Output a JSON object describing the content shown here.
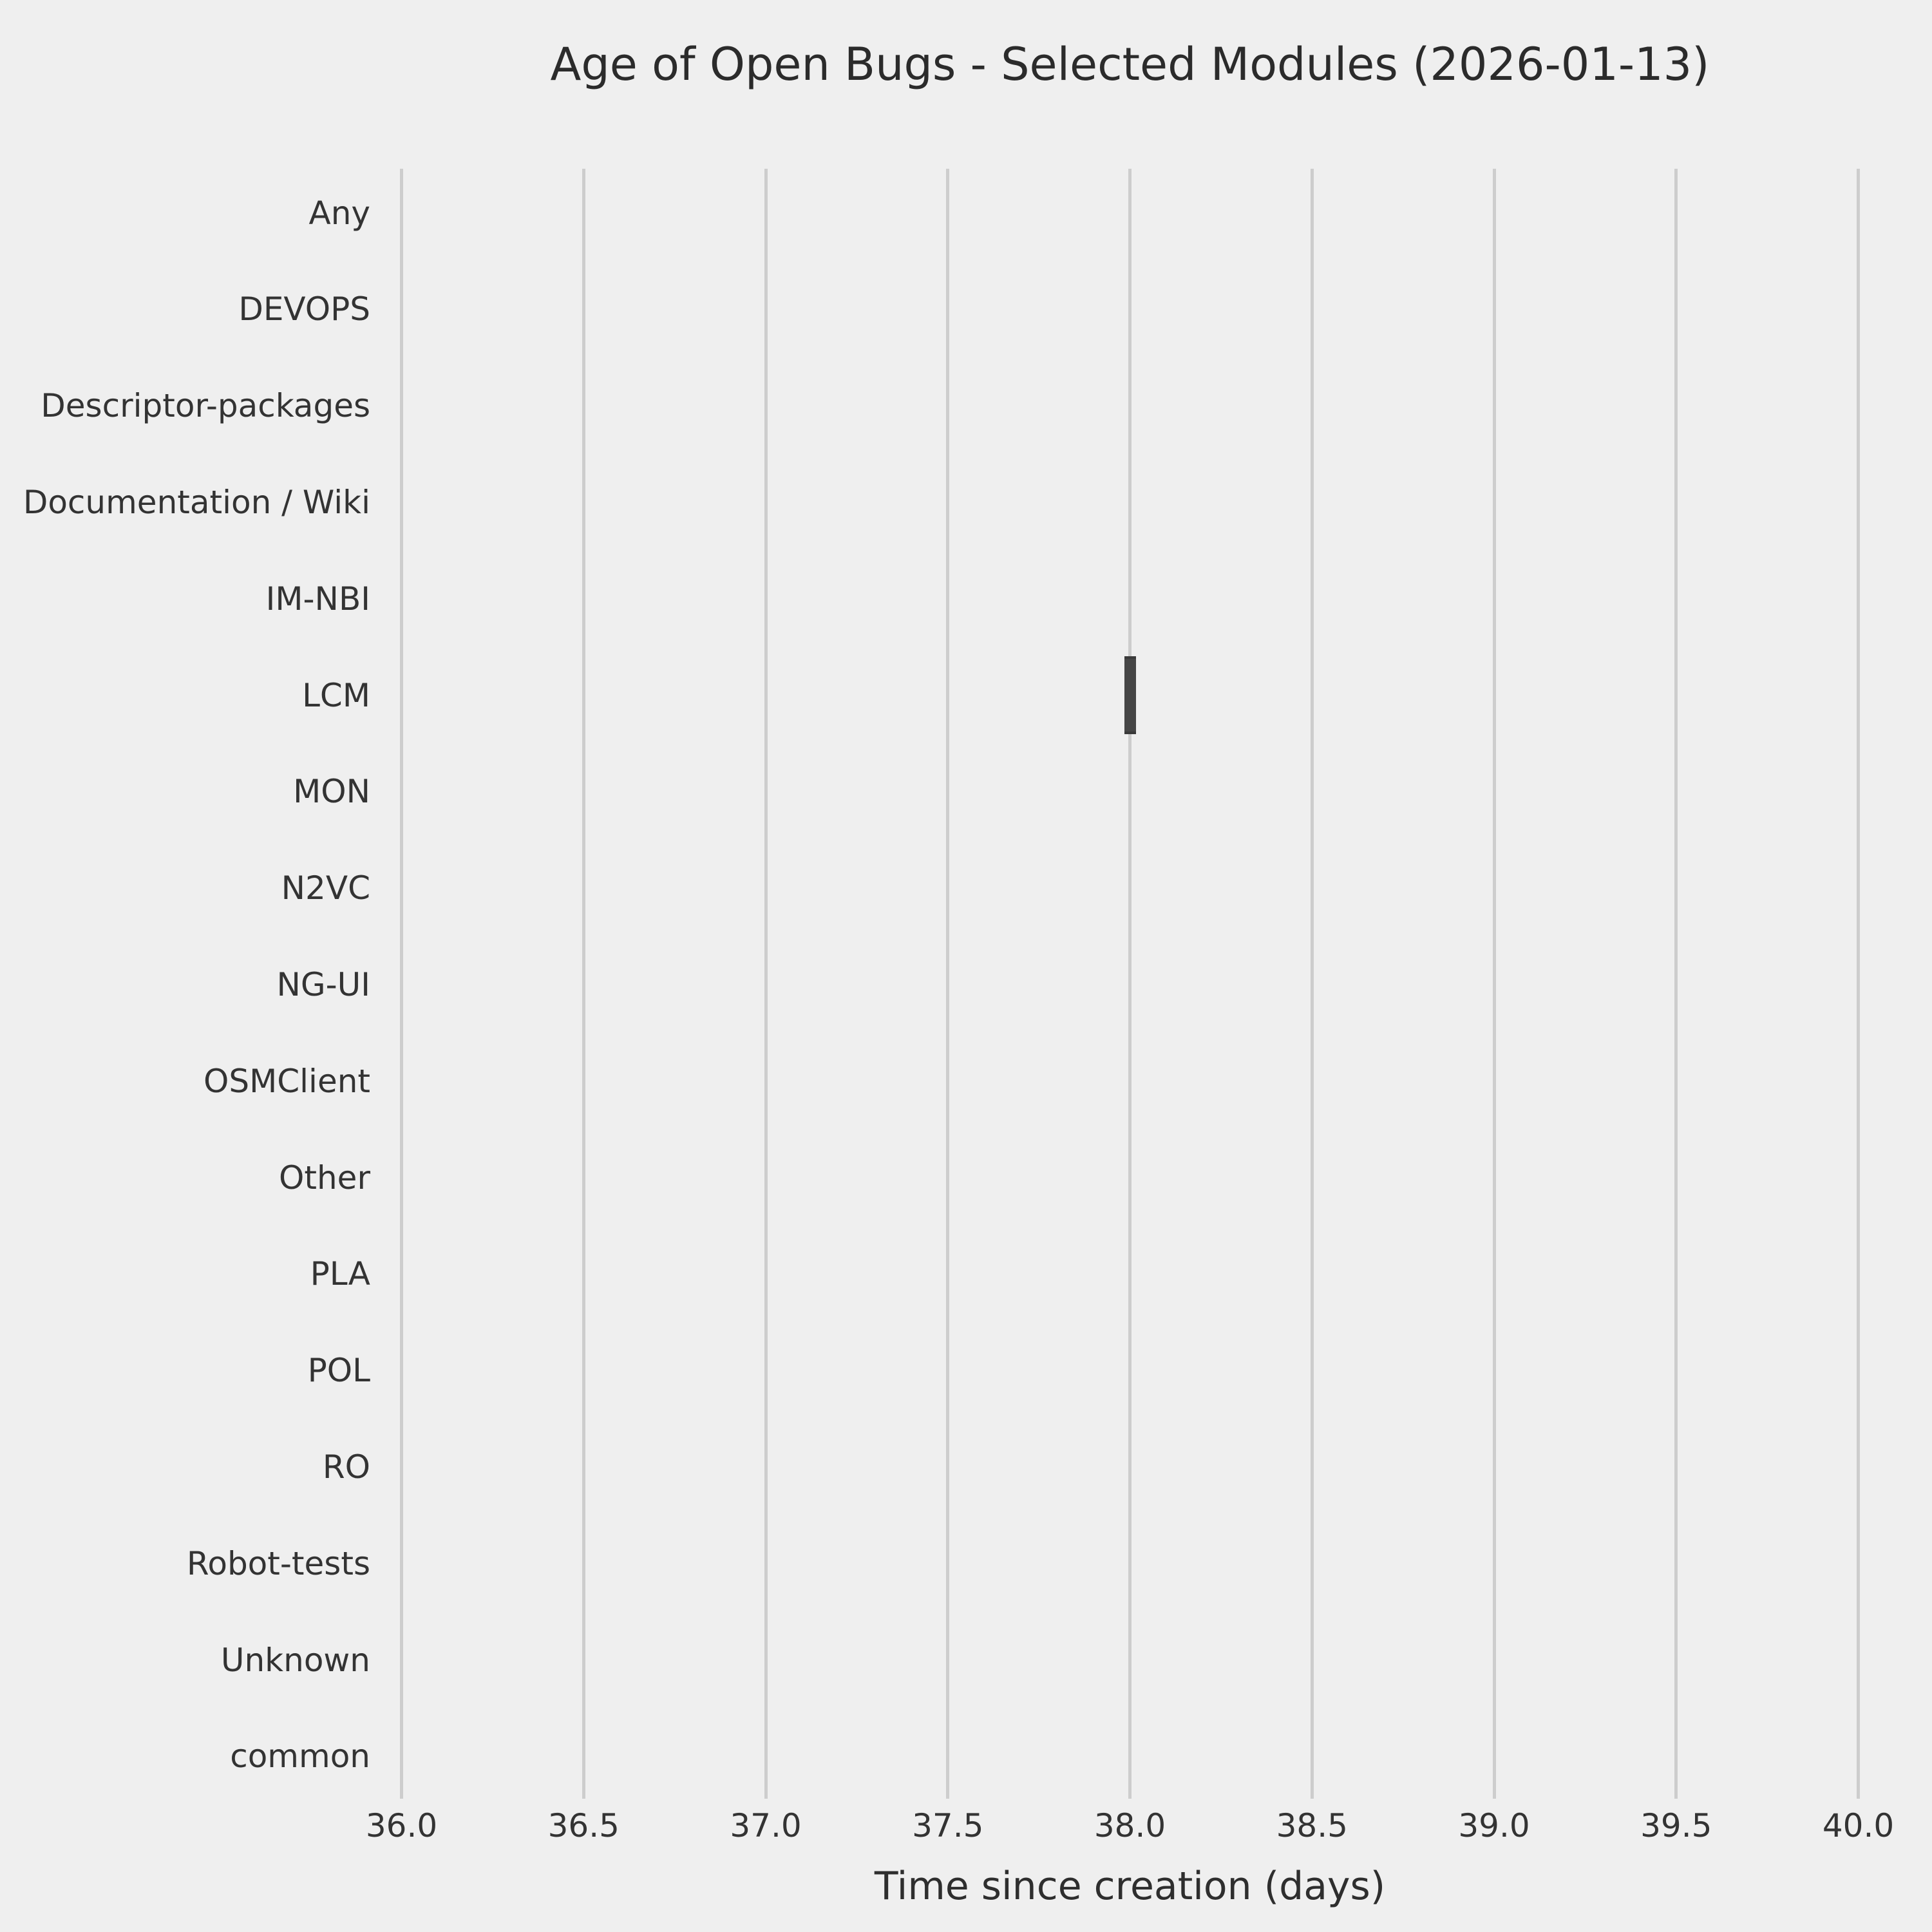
{
  "chart_data": {
    "type": "bar",
    "subtype": "horizontal-boxplot",
    "orientation": "horizontal",
    "title": "Age of Open Bugs - Selected Modules (2026-01-13)",
    "xlabel": "Time since creation (days)",
    "ylabel": "",
    "categories": [
      "Any",
      "DEVOPS",
      "Descriptor-packages",
      "Documentation / Wiki",
      "IM-NBI",
      "LCM",
      "MON",
      "N2VC",
      "NG-UI",
      "OSMClient",
      "Other",
      "PLA",
      "POL",
      "RO",
      "Robot-tests",
      "Unknown",
      "common"
    ],
    "series": [
      {
        "name": "age_of_open_bugs_days",
        "values": [
          null,
          null,
          null,
          null,
          null,
          38.0,
          null,
          null,
          null,
          null,
          null,
          null,
          null,
          null,
          null,
          null,
          null
        ]
      }
    ],
    "data_points": [
      {
        "category": "LCM",
        "value": 38.0
      }
    ],
    "xlim": [
      36.0,
      40.0
    ],
    "xticks": [
      "36.0",
      "36.5",
      "37.0",
      "37.5",
      "38.0",
      "38.5",
      "39.0",
      "39.5",
      "40.0"
    ],
    "xtick_values": [
      36.0,
      36.5,
      37.0,
      37.5,
      38.0,
      38.5,
      39.0,
      39.5,
      40.0
    ],
    "grid": true,
    "legend": false,
    "colors": {
      "background": "#efefef",
      "grid": "#cdcdcd",
      "box": "#454545",
      "text": "#2e2e2e"
    }
  }
}
